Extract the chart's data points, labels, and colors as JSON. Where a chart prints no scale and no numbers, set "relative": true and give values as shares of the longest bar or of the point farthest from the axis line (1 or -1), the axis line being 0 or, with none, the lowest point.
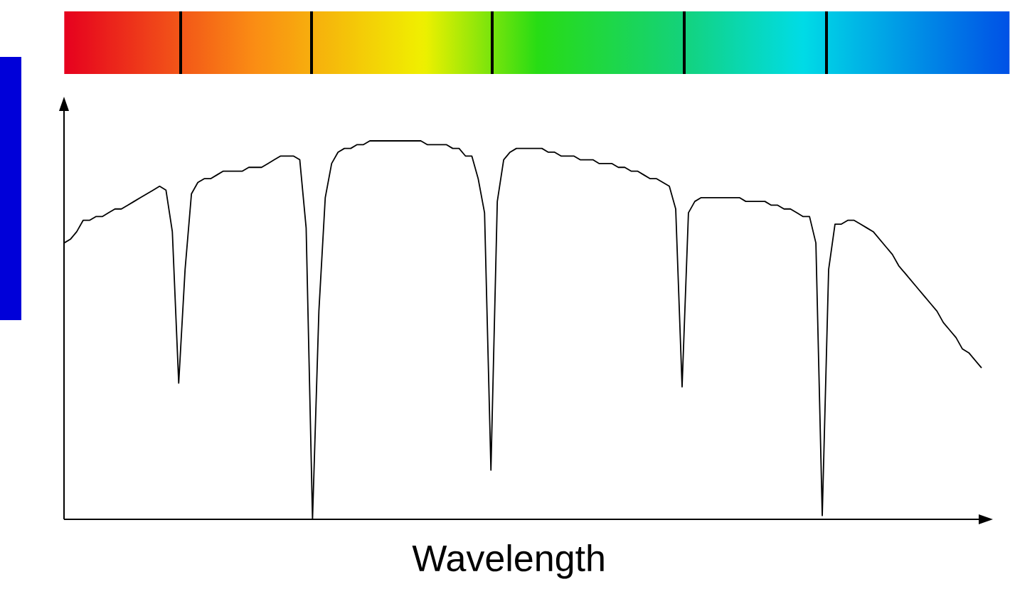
{
  "chart_data": {
    "type": "line",
    "relative": true,
    "xlabel": "Wavelength",
    "color": "#000000",
    "categories": [
      null,
      null,
      null,
      null,
      null,
      null,
      null,
      null,
      null,
      null,
      null,
      null,
      null,
      null,
      null,
      null,
      null,
      null,
      null,
      null,
      null,
      null,
      null,
      null,
      null,
      null,
      null,
      null,
      null,
      null,
      null,
      null,
      null,
      null,
      null,
      null,
      null,
      null,
      null,
      null,
      null,
      null,
      null,
      null,
      null,
      null,
      null,
      null,
      null,
      null,
      null,
      null,
      null,
      null,
      null,
      null,
      null,
      null,
      null,
      null,
      null,
      null,
      null,
      null,
      null,
      null,
      null,
      null,
      null,
      null,
      null,
      null,
      null,
      null,
      null,
      null,
      null,
      null,
      null,
      null,
      null,
      null,
      null,
      null,
      null,
      null,
      null,
      null,
      null,
      null,
      null,
      null,
      null,
      null,
      null,
      null,
      null,
      null,
      null,
      null,
      null,
      null,
      null,
      null,
      null,
      null,
      null,
      null,
      null,
      null,
      null,
      null,
      null,
      null,
      null,
      null,
      null,
      null,
      null,
      null,
      null,
      null,
      null,
      null,
      null,
      null,
      null,
      null,
      null,
      null,
      null,
      null,
      null,
      null,
      null,
      null,
      null,
      null,
      null,
      null,
      null,
      null,
      null,
      null,
      null
    ],
    "values": [
      0.73,
      0.74,
      0.76,
      0.79,
      0.79,
      0.8,
      0.8,
      0.81,
      0.82,
      0.82,
      0.83,
      0.84,
      0.85,
      0.86,
      0.87,
      0.88,
      0.87,
      0.76,
      0.36,
      0.66,
      0.86,
      0.89,
      0.9,
      0.9,
      0.91,
      0.92,
      0.92,
      0.92,
      0.92,
      0.93,
      0.93,
      0.93,
      0.94,
      0.95,
      0.96,
      0.96,
      0.96,
      0.95,
      0.77,
      0,
      0.55,
      0.85,
      0.94,
      0.97,
      0.98,
      0.98,
      0.99,
      0.99,
      1,
      1,
      1,
      1,
      1,
      1,
      1,
      1,
      1,
      0.99,
      0.99,
      0.99,
      0.99,
      0.98,
      0.98,
      0.96,
      0.96,
      0.9,
      0.81,
      0.13,
      0.84,
      0.95,
      0.97,
      0.98,
      0.98,
      0.98,
      0.98,
      0.98,
      0.97,
      0.97,
      0.96,
      0.96,
      0.96,
      0.95,
      0.95,
      0.95,
      0.94,
      0.94,
      0.94,
      0.93,
      0.93,
      0.92,
      0.92,
      0.91,
      0.9,
      0.9,
      0.89,
      0.88,
      0.82,
      0.35,
      0.81,
      0.84,
      0.85,
      0.85,
      0.85,
      0.85,
      0.85,
      0.85,
      0.85,
      0.84,
      0.84,
      0.84,
      0.84,
      0.83,
      0.83,
      0.82,
      0.82,
      0.81,
      0.8,
      0.8,
      0.73,
      0.01,
      0.66,
      0.78,
      0.78,
      0.79,
      0.79,
      0.78,
      0.77,
      0.76,
      0.74,
      0.72,
      0.7,
      0.67,
      0.65,
      0.63,
      0.61,
      0.59,
      0.57,
      0.55,
      0.52,
      0.5,
      0.48,
      0.45,
      0.44,
      0.42,
      0.4
    ]
  }
}
